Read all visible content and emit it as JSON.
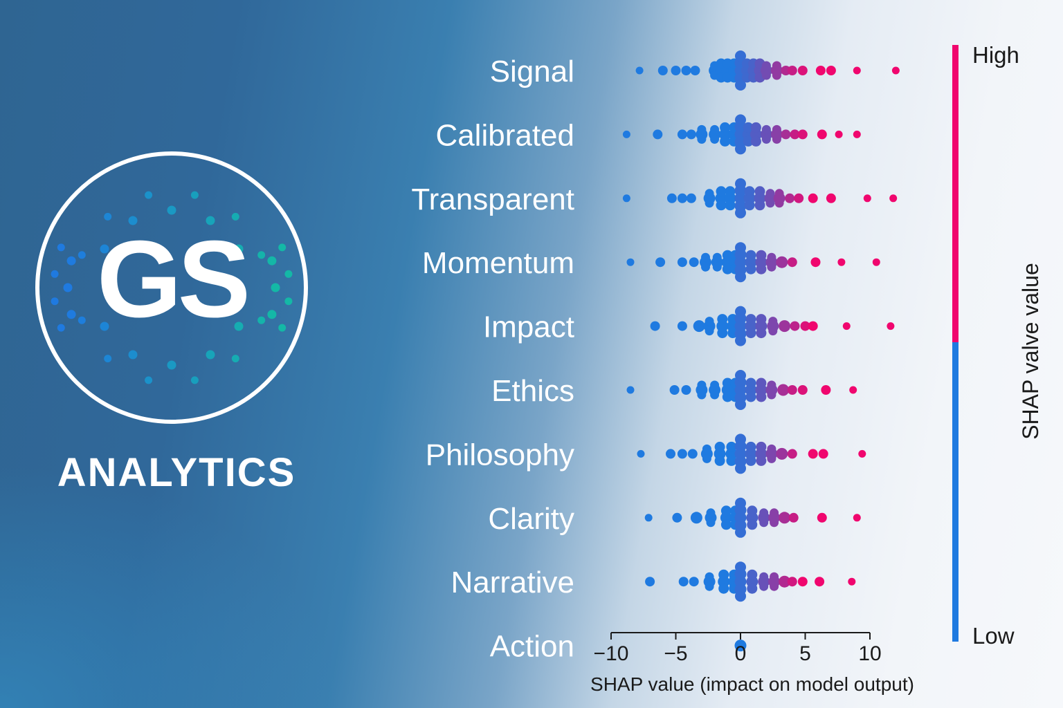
{
  "brand": {
    "initials": "GS",
    "name": "ANALYTICS"
  },
  "colors": {
    "low": "#1f7ae0",
    "high": "#f0066e",
    "label": "#ffffff",
    "axis": "#1a1a1a"
  },
  "chart_data": {
    "type": "scatter",
    "subtype": "shap-beeswarm",
    "title": "",
    "xlabel": "SHAP value (impact on model output)",
    "xlim": [
      -10,
      10
    ],
    "xticks": [
      -10,
      -5,
      0,
      5,
      10
    ],
    "xtick_labels": [
      "−10",
      "−5",
      "0",
      "5",
      "10"
    ],
    "colorbar": {
      "label": "SHAP valve value",
      "high_label": "High",
      "low_label": "Low"
    },
    "features": [
      {
        "name": "Signal",
        "points": [
          {
            "x": -7.8,
            "c": 0
          },
          {
            "x": -6.0,
            "c": 0
          },
          {
            "x": -5.0,
            "c": 0
          },
          {
            "x": -4.2,
            "c": 0
          },
          {
            "x": -3.5,
            "c": 0
          },
          {
            "x": -2.0,
            "c": 0
          },
          {
            "x": -1.5,
            "c": 0
          },
          {
            "x": -1.0,
            "c": 0
          },
          {
            "x": -0.5,
            "c": 0
          },
          {
            "x": 0,
            "c": 0.1
          },
          {
            "x": 0.5,
            "c": 0.15
          },
          {
            "x": 1.0,
            "c": 0.2
          },
          {
            "x": 1.5,
            "c": 0.3
          },
          {
            "x": 2.0,
            "c": 0.4
          },
          {
            "x": 2.8,
            "c": 0.55
          },
          {
            "x": 3.5,
            "c": 0.7
          },
          {
            "x": 4.0,
            "c": 0.8
          },
          {
            "x": 4.8,
            "c": 0.9
          },
          {
            "x": 6.2,
            "c": 1
          },
          {
            "x": 7.0,
            "c": 1
          },
          {
            "x": 9.0,
            "c": 1
          },
          {
            "x": 12.0,
            "c": 1
          }
        ]
      },
      {
        "name": "Calibrated",
        "points": [
          {
            "x": -8.8,
            "c": 0
          },
          {
            "x": -6.4,
            "c": 0
          },
          {
            "x": -4.5,
            "c": 0
          },
          {
            "x": -3.8,
            "c": 0
          },
          {
            "x": -3.0,
            "c": 0
          },
          {
            "x": -2.0,
            "c": 0
          },
          {
            "x": -1.2,
            "c": 0
          },
          {
            "x": -0.5,
            "c": 0
          },
          {
            "x": 0,
            "c": 0.1
          },
          {
            "x": 0.6,
            "c": 0.15
          },
          {
            "x": 1.2,
            "c": 0.25
          },
          {
            "x": 2.0,
            "c": 0.35
          },
          {
            "x": 2.8,
            "c": 0.5
          },
          {
            "x": 3.5,
            "c": 0.65
          },
          {
            "x": 4.2,
            "c": 0.8
          },
          {
            "x": 4.8,
            "c": 0.9
          },
          {
            "x": 6.3,
            "c": 1
          },
          {
            "x": 7.6,
            "c": 1
          },
          {
            "x": 9.0,
            "c": 1
          }
        ]
      },
      {
        "name": "Transparent",
        "points": [
          {
            "x": -8.8,
            "c": 0
          },
          {
            "x": -5.3,
            "c": 0
          },
          {
            "x": -4.5,
            "c": 0
          },
          {
            "x": -3.8,
            "c": 0
          },
          {
            "x": -2.4,
            "c": 0
          },
          {
            "x": -1.5,
            "c": 0
          },
          {
            "x": -0.8,
            "c": 0
          },
          {
            "x": 0,
            "c": 0.1
          },
          {
            "x": 0.7,
            "c": 0.15
          },
          {
            "x": 1.5,
            "c": 0.25
          },
          {
            "x": 2.3,
            "c": 0.4
          },
          {
            "x": 3.0,
            "c": 0.55
          },
          {
            "x": 3.8,
            "c": 0.7
          },
          {
            "x": 4.5,
            "c": 0.85
          },
          {
            "x": 5.6,
            "c": 1
          },
          {
            "x": 7.0,
            "c": 1
          },
          {
            "x": 9.8,
            "c": 1
          },
          {
            "x": 11.8,
            "c": 1
          }
        ]
      },
      {
        "name": "Momentum",
        "points": [
          {
            "x": -8.5,
            "c": 0
          },
          {
            "x": -6.2,
            "c": 0
          },
          {
            "x": -4.5,
            "c": 0
          },
          {
            "x": -3.6,
            "c": 0
          },
          {
            "x": -2.7,
            "c": 0
          },
          {
            "x": -1.8,
            "c": 0
          },
          {
            "x": -1.0,
            "c": 0
          },
          {
            "x": -0.4,
            "c": 0
          },
          {
            "x": 0,
            "c": 0.1
          },
          {
            "x": 0.8,
            "c": 0.15
          },
          {
            "x": 1.6,
            "c": 0.3
          },
          {
            "x": 2.4,
            "c": 0.45
          },
          {
            "x": 3.2,
            "c": 0.6
          },
          {
            "x": 4.0,
            "c": 0.8
          },
          {
            "x": 5.8,
            "c": 1
          },
          {
            "x": 7.8,
            "c": 1
          },
          {
            "x": 10.5,
            "c": 1
          }
        ]
      },
      {
        "name": "Impact",
        "points": [
          {
            "x": -6.6,
            "c": 0
          },
          {
            "x": -4.5,
            "c": 0
          },
          {
            "x": -3.2,
            "c": 0
          },
          {
            "x": -2.4,
            "c": 0
          },
          {
            "x": -1.4,
            "c": 0
          },
          {
            "x": -0.6,
            "c": 0
          },
          {
            "x": 0,
            "c": 0.1
          },
          {
            "x": 0.8,
            "c": 0.2
          },
          {
            "x": 1.6,
            "c": 0.3
          },
          {
            "x": 2.5,
            "c": 0.45
          },
          {
            "x": 3.4,
            "c": 0.6
          },
          {
            "x": 4.2,
            "c": 0.75
          },
          {
            "x": 5.0,
            "c": 0.9
          },
          {
            "x": 5.6,
            "c": 1
          },
          {
            "x": 8.2,
            "c": 1
          },
          {
            "x": 11.6,
            "c": 1
          }
        ]
      },
      {
        "name": "Ethics",
        "points": [
          {
            "x": -8.5,
            "c": 0
          },
          {
            "x": -5.1,
            "c": 0
          },
          {
            "x": -4.2,
            "c": 0
          },
          {
            "x": -3.0,
            "c": 0
          },
          {
            "x": -2.0,
            "c": 0
          },
          {
            "x": -1.0,
            "c": 0
          },
          {
            "x": -0.4,
            "c": 0
          },
          {
            "x": 0,
            "c": 0.1
          },
          {
            "x": 0.8,
            "c": 0.15
          },
          {
            "x": 1.6,
            "c": 0.3
          },
          {
            "x": 2.4,
            "c": 0.45
          },
          {
            "x": 3.3,
            "c": 0.65
          },
          {
            "x": 4.0,
            "c": 0.8
          },
          {
            "x": 4.8,
            "c": 0.9
          },
          {
            "x": 6.6,
            "c": 1
          },
          {
            "x": 8.7,
            "c": 1
          }
        ]
      },
      {
        "name": "Philosophy",
        "points": [
          {
            "x": -7.7,
            "c": 0
          },
          {
            "x": -5.4,
            "c": 0
          },
          {
            "x": -4.5,
            "c": 0
          },
          {
            "x": -3.7,
            "c": 0
          },
          {
            "x": -2.6,
            "c": 0
          },
          {
            "x": -1.6,
            "c": 0
          },
          {
            "x": -0.7,
            "c": 0
          },
          {
            "x": 0,
            "c": 0.1
          },
          {
            "x": 0.8,
            "c": 0.15
          },
          {
            "x": 1.6,
            "c": 0.3
          },
          {
            "x": 2.4,
            "c": 0.45
          },
          {
            "x": 3.2,
            "c": 0.6
          },
          {
            "x": 4.0,
            "c": 0.8
          },
          {
            "x": 5.6,
            "c": 1
          },
          {
            "x": 6.4,
            "c": 1
          },
          {
            "x": 9.4,
            "c": 1
          }
        ]
      },
      {
        "name": "Clarity",
        "points": [
          {
            "x": -7.1,
            "c": 0
          },
          {
            "x": -4.9,
            "c": 0
          },
          {
            "x": -3.4,
            "c": 0
          },
          {
            "x": -2.3,
            "c": 0
          },
          {
            "x": -1.1,
            "c": 0
          },
          {
            "x": -0.4,
            "c": 0
          },
          {
            "x": 0,
            "c": 0.1
          },
          {
            "x": 0.9,
            "c": 0.2
          },
          {
            "x": 1.8,
            "c": 0.35
          },
          {
            "x": 2.6,
            "c": 0.5
          },
          {
            "x": 3.4,
            "c": 0.65
          },
          {
            "x": 4.1,
            "c": 0.8
          },
          {
            "x": 6.3,
            "c": 1
          },
          {
            "x": 9.0,
            "c": 1
          }
        ]
      },
      {
        "name": "Narrative",
        "points": [
          {
            "x": -7.0,
            "c": 0
          },
          {
            "x": -4.4,
            "c": 0
          },
          {
            "x": -3.6,
            "c": 0
          },
          {
            "x": -2.4,
            "c": 0
          },
          {
            "x": -1.3,
            "c": 0
          },
          {
            "x": -0.5,
            "c": 0
          },
          {
            "x": 0,
            "c": 0.1
          },
          {
            "x": 0.9,
            "c": 0.2
          },
          {
            "x": 1.8,
            "c": 0.35
          },
          {
            "x": 2.6,
            "c": 0.5
          },
          {
            "x": 3.4,
            "c": 0.7
          },
          {
            "x": 4.0,
            "c": 0.85
          },
          {
            "x": 4.8,
            "c": 1
          },
          {
            "x": 6.1,
            "c": 1
          },
          {
            "x": 8.6,
            "c": 1
          }
        ]
      },
      {
        "name": "Action",
        "points": [
          {
            "x": 0,
            "c": 0
          }
        ]
      }
    ]
  }
}
